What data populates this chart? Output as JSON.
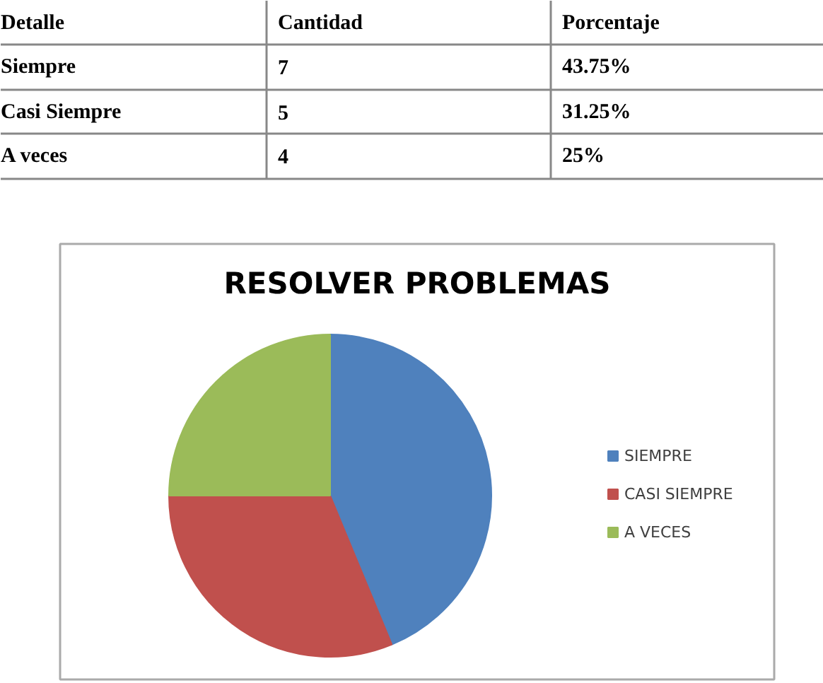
{
  "chart_data": [
    {
      "type": "other",
      "annotations": [
        "Detalle",
        "Cantidad",
        "Porcentaje",
        "Siempre",
        "7",
        "43.75%",
        "Casi Siempre",
        "5",
        "31.25%",
        "A veces",
        "4",
        "25%"
      ]
    },
    {
      "type": "pie",
      "title": "RESOLVER PROBLEMAS",
      "categories": [
        "SIEMPRE",
        "CASI SIEMPRE",
        "A VECES"
      ],
      "values": [
        43.75,
        31.25,
        25
      ],
      "colors": [
        "#4f81bd",
        "#c0504d",
        "#9bbb59"
      ],
      "legend": "right"
    }
  ]
}
